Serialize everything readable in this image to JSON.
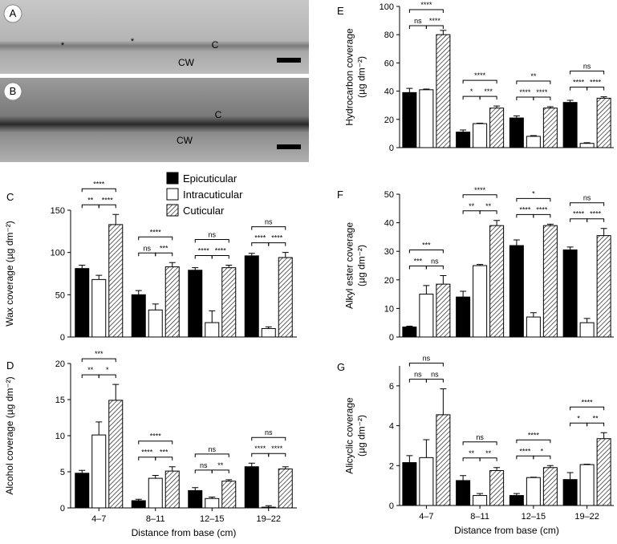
{
  "images": [
    {
      "panel": "A",
      "labels": [
        "*",
        "*",
        "C",
        "CW"
      ]
    },
    {
      "panel": "B",
      "labels": [
        "C",
        "CW"
      ]
    }
  ],
  "chart_data": [
    {
      "type": "bar",
      "panel": "C",
      "ylabel": [
        "Wax coverage (µg dm⁻²)"
      ],
      "categories": [
        null,
        null,
        null,
        null
      ],
      "ylim": [
        0,
        150
      ],
      "yticks": [
        0,
        50,
        100,
        150
      ],
      "series": [
        {
          "name": "Epicuticular",
          "color": "#000000",
          "values": [
            81,
            50,
            79,
            96
          ],
          "errors": [
            4,
            5,
            3,
            3
          ]
        },
        {
          "name": "Intracuticular",
          "color": "#ffffff",
          "values": [
            68,
            32,
            17,
            10
          ],
          "errors": [
            5,
            7,
            14,
            2
          ]
        },
        {
          "name": "Cuticular",
          "color": "#ffffff",
          "hatch": true,
          "values": [
            133,
            83,
            82,
            94
          ],
          "errors": [
            12,
            5,
            3,
            6
          ]
        }
      ],
      "significance": [
        {
          "top": "****",
          "left": "**",
          "right": "****"
        },
        {
          "top": "****",
          "left": "ns",
          "right": "***"
        },
        {
          "top": "ns",
          "left": "****",
          "right": "****"
        },
        {
          "top": "ns",
          "left": "****",
          "right": "****"
        }
      ]
    },
    {
      "type": "bar",
      "panel": "D",
      "ylabel": [
        "Alcohol coverage (µg dm⁻²)"
      ],
      "xlabel": "Distance from base (cm)",
      "categories": [
        "4–7",
        "8–11",
        "12–15",
        "19–22"
      ],
      "ylim": [
        0,
        20
      ],
      "yticks": [
        0,
        5,
        10,
        15,
        20
      ],
      "series": [
        {
          "color": "#000000",
          "values": [
            4.8,
            1.0,
            2.4,
            5.7
          ],
          "errors": [
            0.4,
            0.2,
            0.4,
            0.5
          ]
        },
        {
          "color": "#ffffff",
          "values": [
            10.1,
            4.1,
            1.3,
            0.1
          ],
          "errors": [
            1.8,
            0.4,
            0.2,
            0.2
          ]
        },
        {
          "color": "#ffffff",
          "hatch": true,
          "values": [
            14.9,
            5.1,
            3.7,
            5.4
          ],
          "errors": [
            2.2,
            0.6,
            0.2,
            0.3
          ]
        }
      ],
      "significance": [
        {
          "top": "***",
          "left": "**",
          "right": "*"
        },
        {
          "top": "****",
          "left": "****",
          "right": "***"
        },
        {
          "top": "ns",
          "left": "ns",
          "right": "**"
        },
        {
          "top": "ns",
          "left": "****",
          "right": "****"
        }
      ]
    },
    {
      "type": "bar",
      "panel": "E",
      "ylabel": [
        "Hydrocarbon coverage",
        "(µg dm⁻²)"
      ],
      "categories": [
        null,
        null,
        null,
        null
      ],
      "ylim": [
        0,
        100
      ],
      "yticks": [
        0,
        20,
        40,
        60,
        80,
        100
      ],
      "series": [
        {
          "color": "#000000",
          "values": [
            39,
            11,
            21,
            32
          ],
          "errors": [
            3,
            1.5,
            1.5,
            1.5
          ]
        },
        {
          "color": "#ffffff",
          "values": [
            41,
            17,
            8,
            3
          ],
          "errors": [
            0.5,
            0.3,
            0.5,
            0.5
          ]
        },
        {
          "color": "#ffffff",
          "hatch": true,
          "values": [
            80,
            28,
            28,
            35
          ],
          "errors": [
            3,
            1.5,
            1,
            1
          ]
        }
      ],
      "significance": [
        {
          "top": "****",
          "left": "ns",
          "right": "****"
        },
        {
          "top": "****",
          "left": "*",
          "right": "***"
        },
        {
          "top": "**",
          "left": "****",
          "right": "****"
        },
        {
          "top": "ns",
          "left": "****",
          "right": "****"
        }
      ]
    },
    {
      "type": "bar",
      "panel": "F",
      "ylabel": [
        "Alkyl ester coverage",
        "(µg dm⁻²)"
      ],
      "categories": [
        null,
        null,
        null,
        null
      ],
      "ylim": [
        0,
        50
      ],
      "yticks": [
        0,
        10,
        20,
        30,
        40,
        50
      ],
      "series": [
        {
          "color": "#000000",
          "values": [
            3.5,
            14,
            32,
            30.5
          ],
          "errors": [
            0.3,
            2,
            2,
            1
          ]
        },
        {
          "color": "#ffffff",
          "values": [
            15,
            25,
            7,
            5
          ],
          "errors": [
            3,
            0.4,
            1.5,
            1.5
          ]
        },
        {
          "color": "#ffffff",
          "hatch": true,
          "values": [
            18.5,
            39,
            39,
            35.5
          ],
          "errors": [
            3,
            1.8,
            0.5,
            2.5
          ]
        }
      ],
      "significance": [
        {
          "top": "***",
          "left": "***",
          "right": "ns"
        },
        {
          "top": "****",
          "left": "**",
          "right": "**"
        },
        {
          "top": "*",
          "left": "****",
          "right": "****"
        },
        {
          "top": "ns",
          "left": "****",
          "right": "****"
        }
      ]
    },
    {
      "type": "bar",
      "panel": "G",
      "ylabel": [
        "Alicyclic coverage",
        "(µg dm⁻²)"
      ],
      "xlabel": "Distance from base (cm)",
      "categories": [
        "4–7",
        "8–11",
        "12–15",
        "19–22"
      ],
      "ylim": [
        0,
        7
      ],
      "yticks": [
        0,
        2,
        4,
        6
      ],
      "series": [
        {
          "color": "#000000",
          "values": [
            2.15,
            1.25,
            0.5,
            1.3
          ],
          "errors": [
            0.35,
            0.25,
            0.1,
            0.35
          ]
        },
        {
          "color": "#ffffff",
          "values": [
            2.4,
            0.5,
            1.4,
            2.05
          ],
          "errors": [
            0.9,
            0.1,
            0.02,
            0.02
          ]
        },
        {
          "color": "#ffffff",
          "hatch": true,
          "values": [
            4.55,
            1.75,
            1.9,
            3.35
          ],
          "errors": [
            1.3,
            0.15,
            0.1,
            0.3
          ]
        }
      ],
      "significance": [
        {
          "top": "ns",
          "left": "ns",
          "right": "ns"
        },
        {
          "top": "ns",
          "left": "**",
          "right": "**"
        },
        {
          "top": "****",
          "left": "****",
          "right": "*"
        },
        {
          "top": "****",
          "left": "*",
          "right": "**"
        }
      ]
    }
  ]
}
